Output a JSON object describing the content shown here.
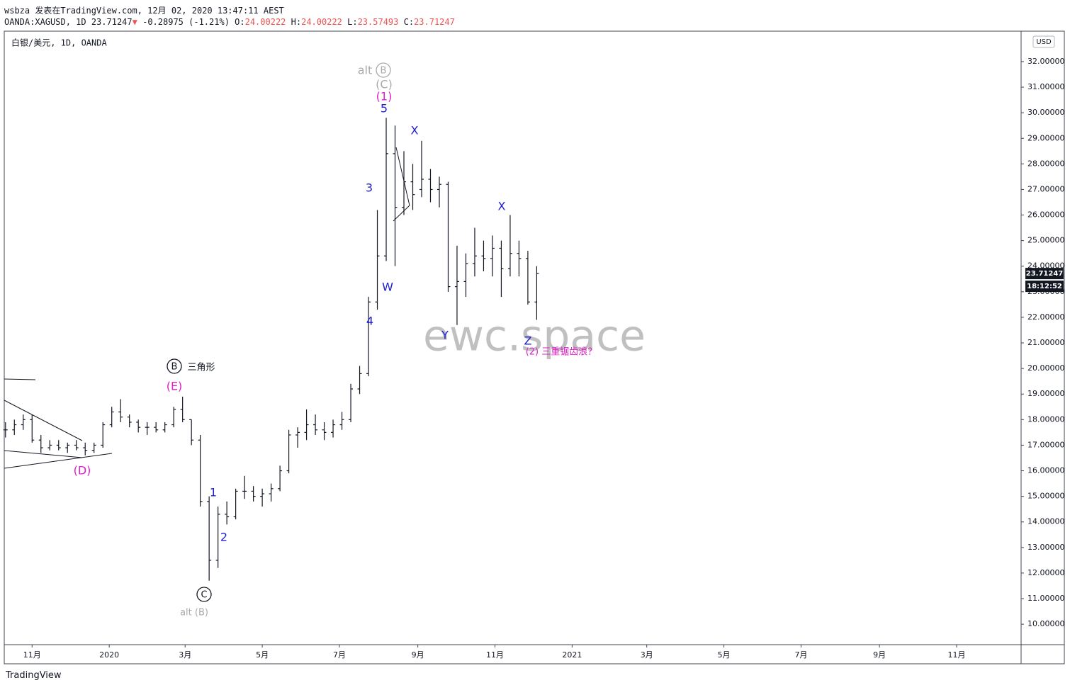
{
  "header": {
    "line1": "wsbza 发表在TradingView.com, 12月 02, 2020 13:47:11 AEST",
    "symbol": "OANDA:XAGUSD, 1D 23.71247",
    "arrow": "▼",
    "change": "-0.28975 (-1.21%)",
    "o_label": "O:",
    "o": "24.00222",
    "h_label": "H:",
    "h": "24.00222",
    "l_label": "L:",
    "l": "23.57493",
    "c_label": "C:",
    "c": "23.71247",
    "brand": "TradingView"
  },
  "chart_data": {
    "type": "ohlc",
    "title": "白银/美元, 1D, OANDA",
    "color": "#131722",
    "x": [
      -21,
      -14,
      -7,
      0,
      7,
      14,
      21,
      28,
      35,
      42,
      49,
      56,
      63,
      70,
      77,
      84,
      91,
      98,
      105,
      112,
      119,
      126,
      133,
      140,
      147,
      154,
      161,
      168,
      175,
      182,
      189,
      196,
      203,
      210,
      217,
      224,
      231,
      238,
      245,
      252,
      259,
      266,
      273,
      280,
      287,
      294,
      301,
      308,
      315,
      322,
      329,
      336,
      343,
      350,
      357,
      364,
      371,
      378,
      385,
      392,
      399
    ],
    "open": [
      17.6,
      17.6,
      17.8,
      18.0,
      17.2,
      16.9,
      17.0,
      16.9,
      17.0,
      16.9,
      16.8,
      17.0,
      17.8,
      18.3,
      18.1,
      17.9,
      17.7,
      17.7,
      17.6,
      17.8,
      18.4,
      18.0,
      17.2,
      14.8,
      12.5,
      14.3,
      14.2,
      15.2,
      15.2,
      15.0,
      15.1,
      15.3,
      16.0,
      17.4,
      17.5,
      17.8,
      17.6,
      17.5,
      17.8,
      18.0,
      19.2,
      19.8,
      22.6,
      24.4,
      28.4,
      26.3,
      27.3,
      27.0,
      27.4,
      27.0,
      27.2,
      23.2,
      23.4,
      24.1,
      24.4,
      24.3,
      24.7,
      23.9,
      24.5,
      24.3,
      22.6
    ],
    "high": [
      17.9,
      18.0,
      18.2,
      18.2,
      17.4,
      17.2,
      17.2,
      17.1,
      17.2,
      17.1,
      17.1,
      17.9,
      18.5,
      18.8,
      18.2,
      18.0,
      17.9,
      17.9,
      17.9,
      18.5,
      18.9,
      18.0,
      17.4,
      15.0,
      14.6,
      14.8,
      15.3,
      15.8,
      15.4,
      15.3,
      15.5,
      16.2,
      17.6,
      17.7,
      18.4,
      18.2,
      17.9,
      18.0,
      18.3,
      19.4,
      20.1,
      22.8,
      26.2,
      29.8,
      29.5,
      28.5,
      28.0,
      28.9,
      27.8,
      27.5,
      27.3,
      24.8,
      24.5,
      25.5,
      25.0,
      25.2,
      25.0,
      26.0,
      25.0,
      24.6,
      24.0
    ],
    "low": [
      17.3,
      17.4,
      17.6,
      17.1,
      16.7,
      16.8,
      16.8,
      16.7,
      16.8,
      16.6,
      16.7,
      16.9,
      17.7,
      17.9,
      17.7,
      17.5,
      17.4,
      17.5,
      17.5,
      17.7,
      17.9,
      17.0,
      14.6,
      11.7,
      12.2,
      13.9,
      14.1,
      14.9,
      14.8,
      14.6,
      14.8,
      15.2,
      15.9,
      16.9,
      17.2,
      17.4,
      17.2,
      17.3,
      17.6,
      17.9,
      19.0,
      19.7,
      22.3,
      24.2,
      24.0,
      26.0,
      26.2,
      26.7,
      26.5,
      26.3,
      23.0,
      21.7,
      22.8,
      23.6,
      23.8,
      23.6,
      22.8,
      23.6,
      23.6,
      22.5,
      21.9
    ],
    "close": [
      17.6,
      17.8,
      18.0,
      17.2,
      16.9,
      17.0,
      16.9,
      17.0,
      16.9,
      16.8,
      17.0,
      17.8,
      18.3,
      18.1,
      17.9,
      17.7,
      17.7,
      17.6,
      17.8,
      18.4,
      18.0,
      17.2,
      14.8,
      12.5,
      14.3,
      14.2,
      15.2,
      15.2,
      15.0,
      15.1,
      15.3,
      16.0,
      17.4,
      17.5,
      17.8,
      17.6,
      17.5,
      17.8,
      18.0,
      19.2,
      19.8,
      22.6,
      24.4,
      28.4,
      26.3,
      27.3,
      26.8,
      27.4,
      27.0,
      27.2,
      23.2,
      23.4,
      24.1,
      24.4,
      24.3,
      24.7,
      23.9,
      24.5,
      24.3,
      22.6,
      23.71247
    ],
    "xlim": [
      -22,
      782
    ],
    "ylim": [
      9.2,
      33.19
    ],
    "yticks": [
      {
        "value": 10,
        "label": "10.00000"
      },
      {
        "value": 11,
        "label": "11.00000"
      },
      {
        "value": 12,
        "label": "12.00000"
      },
      {
        "value": 13,
        "label": "13.00000"
      },
      {
        "value": 14,
        "label": "14.00000"
      },
      {
        "value": 15,
        "label": "15.00000"
      },
      {
        "value": 16,
        "label": "16.00000"
      },
      {
        "value": 17,
        "label": "17.00000"
      },
      {
        "value": 18,
        "label": "18.00000"
      },
      {
        "value": 19,
        "label": "19.00000"
      },
      {
        "value": 20,
        "label": "20.00000"
      },
      {
        "value": 21,
        "label": "21.00000"
      },
      {
        "value": 22,
        "label": "22.00000"
      },
      {
        "value": 23,
        "label": "23.00000"
      },
      {
        "value": 24,
        "label": "24.00000"
      },
      {
        "value": 25,
        "label": "25.00000"
      },
      {
        "value": 26,
        "label": "26.00000"
      },
      {
        "value": 27,
        "label": "27.00000"
      },
      {
        "value": 28,
        "label": "28.00000"
      },
      {
        "value": 29,
        "label": "29.00000"
      },
      {
        "value": 30,
        "label": "30.00000"
      },
      {
        "value": 31,
        "label": "31.00000"
      },
      {
        "value": 32,
        "label": "32.00000"
      }
    ],
    "xticks": [
      {
        "value": 0,
        "label": "11月"
      },
      {
        "value": 61,
        "label": "2020"
      },
      {
        "value": 121,
        "label": "3月"
      },
      {
        "value": 182,
        "label": "5月"
      },
      {
        "value": 243,
        "label": "7月"
      },
      {
        "value": 305,
        "label": "9月"
      },
      {
        "value": 366,
        "label": "11月"
      },
      {
        "value": 427,
        "label": "2021"
      },
      {
        "value": 486,
        "label": "3月"
      },
      {
        "value": 547,
        "label": "5月"
      },
      {
        "value": 608,
        "label": "7月"
      },
      {
        "value": 670,
        "label": "9月"
      },
      {
        "value": 731,
        "label": "11月"
      }
    ],
    "currency": "USD",
    "countdown": "18:12:52",
    "watermark": "ewc.space",
    "annotations": [
      {
        "text": "alt",
        "color": "#aaaaaa"
      },
      {
        "text": "B",
        "color": "#aaaaaa",
        "circled": true
      },
      {
        "text": "(C)",
        "color": "#aaaaaa"
      },
      {
        "text": "(1)",
        "color": "#e020c8"
      },
      {
        "text": "5",
        "color": "#2020d0"
      },
      {
        "text": "X",
        "color": "#2020d0"
      },
      {
        "text": "3",
        "color": "#2020d0"
      },
      {
        "text": "W",
        "color": "#2020d0"
      },
      {
        "text": "4",
        "color": "#2020d0"
      },
      {
        "text": "Y",
        "color": "#2020d0"
      },
      {
        "text": "X",
        "color": "#2020d0"
      },
      {
        "text": "Z",
        "color": "#2020d0"
      },
      {
        "text": "(2) 三重锯齿浪？",
        "color": "#e020c8"
      },
      {
        "text": "B",
        "color": "#131722",
        "circled": true
      },
      {
        "text": "三角形",
        "color": "#131722"
      },
      {
        "text": "(E)",
        "color": "#e020c8"
      },
      {
        "text": "(D)",
        "color": "#e020c8"
      },
      {
        "text": "1",
        "color": "#2020d0"
      },
      {
        "text": "2",
        "color": "#2020d0"
      },
      {
        "text": "C",
        "color": "#131722",
        "circled": true
      },
      {
        "text": "alt (B)",
        "color": "#aaaaaa"
      }
    ]
  }
}
